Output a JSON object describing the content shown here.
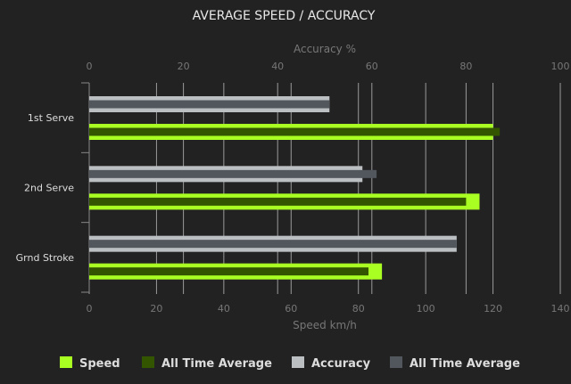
{
  "chart_data": {
    "type": "bar",
    "orientation": "horizontal",
    "title": "AVERAGE SPEED / ACCURACY",
    "categories": [
      "1st Serve",
      "2nd Serve",
      "Grnd Stroke"
    ],
    "x_bottom": {
      "label": "Speed km/h",
      "range": [
        0,
        140
      ],
      "ticks": [
        0,
        20,
        40,
        60,
        80,
        100,
        120,
        140
      ]
    },
    "x_top": {
      "label": "Accuracy %",
      "range": [
        0,
        100
      ],
      "ticks": [
        0,
        20,
        40,
        60,
        80,
        100
      ]
    },
    "grid": true,
    "legend_position": "bottom",
    "series": [
      {
        "name": "Speed",
        "axis": "speed",
        "color": "#aaff22",
        "values": [
          120,
          116,
          87
        ]
      },
      {
        "name": "All Time Average",
        "axis": "speed",
        "color": "#335500",
        "values": [
          122,
          112,
          83
        ]
      },
      {
        "name": "Accuracy",
        "axis": "accuracy",
        "color": "#bbbfc2",
        "values": [
          51,
          58,
          78
        ]
      },
      {
        "name": "All Time Average",
        "axis": "accuracy",
        "color": "#52575e",
        "values": [
          51,
          61,
          78
        ]
      }
    ]
  }
}
